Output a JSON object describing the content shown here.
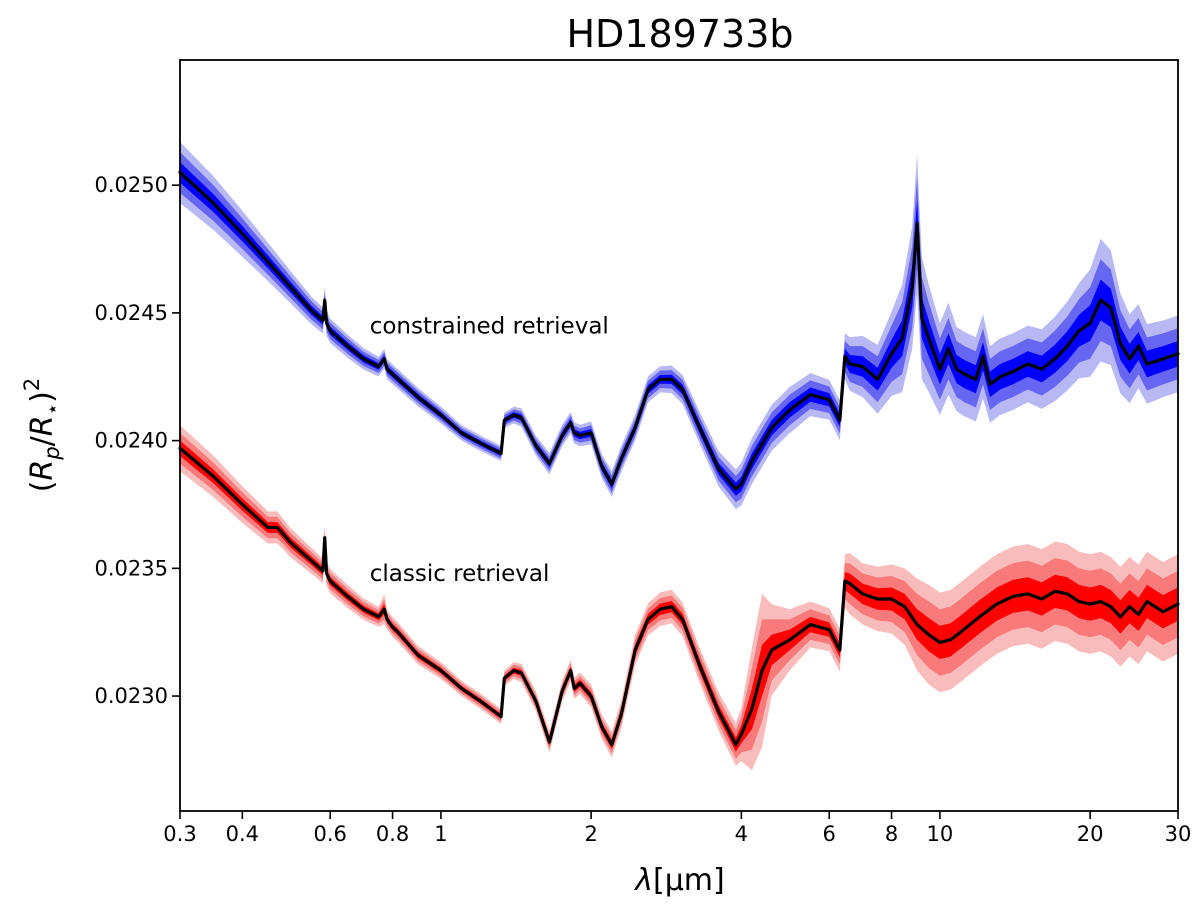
{
  "chart_data": {
    "type": "line",
    "title": "HD189733b",
    "xlabel_symbol": "λ",
    "xlabel_unit": "[μm]",
    "ylabel": "(Rp/R⋆)²",
    "xscale": "log",
    "xlim": [
      0.3,
      30
    ],
    "ylim": [
      0.02255,
      0.02549
    ],
    "x_ticks": [
      0.3,
      0.4,
      0.6,
      0.8,
      1,
      2,
      4,
      6,
      8,
      10,
      20,
      30
    ],
    "x_tick_labels": [
      "0.3",
      "0.4",
      "0.6",
      "0.8",
      "1",
      "2",
      "4",
      "6",
      "8",
      "10",
      "20",
      "30"
    ],
    "y_ticks": [
      0.023,
      0.0235,
      0.024,
      0.0245,
      0.025
    ],
    "y_tick_labels": [
      "0.0230",
      "0.0235",
      "0.0240",
      "0.0245",
      "0.0250"
    ],
    "grid": false,
    "legend": "none",
    "annotations": [
      {
        "text": "constrained retrieval",
        "x": 0.72,
        "y": 0.02442
      },
      {
        "text": "classic retrieval",
        "x": 0.72,
        "y": 0.02345
      }
    ],
    "series": [
      {
        "color_median": "#000000",
        "color_1sigma": "#0000ff",
        "color_2sigma": "#6666f2",
        "color_3sigma": "#b8b8f5",
        "x": [
          0.3,
          0.35,
          0.4,
          0.45,
          0.5,
          0.55,
          0.58,
          0.585,
          0.59,
          0.6,
          0.65,
          0.7,
          0.75,
          0.77,
          0.78,
          0.8,
          0.9,
          1.0,
          1.1,
          1.2,
          1.32,
          1.34,
          1.4,
          1.45,
          1.55,
          1.65,
          1.75,
          1.82,
          1.85,
          1.9,
          2.0,
          2.1,
          2.2,
          2.3,
          2.45,
          2.6,
          2.75,
          2.9,
          3.05,
          3.3,
          3.6,
          3.9,
          4.0,
          4.2,
          4.6,
          5.0,
          5.5,
          6.0,
          6.3,
          6.45,
          6.6,
          7.0,
          7.5,
          8.0,
          8.4,
          8.8,
          9.0,
          9.2,
          9.5,
          10.0,
          10.4,
          10.8,
          11.2,
          11.8,
          12.2,
          12.6,
          13.2,
          14.0,
          15.0,
          16.0,
          17.0,
          18.0,
          19.0,
          20.0,
          21.0,
          22.0,
          23.0,
          24.0,
          25.0,
          26.0,
          28.0,
          30.0
        ],
        "y": [
          0.02505,
          0.02493,
          0.02481,
          0.0247,
          0.0246,
          0.02451,
          0.02447,
          0.02455,
          0.02446,
          0.02443,
          0.02437,
          0.02432,
          0.02429,
          0.02432,
          0.02428,
          0.02426,
          0.02417,
          0.0241,
          0.02403,
          0.02399,
          0.02395,
          0.02408,
          0.0241,
          0.02409,
          0.02398,
          0.02391,
          0.02402,
          0.02407,
          0.02403,
          0.02402,
          0.02403,
          0.0239,
          0.02383,
          0.02393,
          0.02405,
          0.0242,
          0.02424,
          0.02424,
          0.0242,
          0.02405,
          0.02389,
          0.02381,
          0.02383,
          0.02392,
          0.02405,
          0.02412,
          0.02418,
          0.02416,
          0.02408,
          0.02433,
          0.0243,
          0.02429,
          0.02424,
          0.02434,
          0.0244,
          0.0246,
          0.02485,
          0.02448,
          0.0244,
          0.02428,
          0.02436,
          0.02428,
          0.02426,
          0.02424,
          0.02433,
          0.02422,
          0.02425,
          0.02427,
          0.0243,
          0.02428,
          0.02432,
          0.02437,
          0.02443,
          0.02446,
          0.02455,
          0.02452,
          0.02438,
          0.02432,
          0.02437,
          0.0243,
          0.02432,
          0.02434
        ],
        "sigma1": [
          4e-05,
          3.5e-05,
          3e-05,
          2.5e-05,
          2.1e-05,
          1.8e-05,
          1.7e-05,
          1.7e-05,
          1.7e-05,
          1.6e-05,
          1.5e-05,
          1.4e-05,
          1.3e-05,
          1.3e-05,
          1.3e-05,
          1.3e-05,
          1.2e-05,
          1.1e-05,
          1e-05,
          1e-05,
          1e-05,
          1e-05,
          1.1e-05,
          1.2e-05,
          1.3e-05,
          1.4e-05,
          1.4e-05,
          1.4e-05,
          1.4e-05,
          1.4e-05,
          1.5e-05,
          1.6e-05,
          1.7e-05,
          1.7e-05,
          1.7e-05,
          1.7e-05,
          1.7e-05,
          1.8e-05,
          1.9e-05,
          2.1e-05,
          2.3e-05,
          2.6e-05,
          2.8e-05,
          3e-05,
          3e-05,
          3e-05,
          2.8e-05,
          2.6e-05,
          2.6e-05,
          3e-05,
          3.5e-05,
          4e-05,
          4.5e-05,
          5.5e-05,
          7e-05,
          8e-05,
          9e-05,
          8e-05,
          7e-05,
          6e-05,
          6e-05,
          5.5e-05,
          5.5e-05,
          5.5e-05,
          5.5e-05,
          5e-05,
          5e-05,
          5e-05,
          5e-05,
          5.2e-05,
          5.5e-05,
          5.8e-05,
          6.2e-05,
          7e-05,
          8e-05,
          7.5e-05,
          6.5e-05,
          5.8e-05,
          5.5e-05,
          5.2e-05,
          5e-05,
          5e-05
        ]
      },
      {
        "color_median": "#000000",
        "color_1sigma": "#ff0000",
        "color_2sigma": "#f97a7a",
        "color_3sigma": "#f9bcbc",
        "x": [
          0.3,
          0.35,
          0.4,
          0.45,
          0.47,
          0.48,
          0.5,
          0.55,
          0.58,
          0.585,
          0.59,
          0.6,
          0.65,
          0.7,
          0.75,
          0.77,
          0.78,
          0.8,
          0.82,
          0.9,
          1.0,
          1.1,
          1.2,
          1.32,
          1.34,
          1.4,
          1.45,
          1.55,
          1.65,
          1.75,
          1.82,
          1.85,
          1.9,
          2.0,
          2.1,
          2.2,
          2.3,
          2.45,
          2.6,
          2.75,
          2.9,
          3.05,
          3.3,
          3.6,
          3.9,
          4.0,
          4.2,
          4.4,
          4.6,
          5.0,
          5.5,
          6.0,
          6.3,
          6.45,
          6.6,
          7.0,
          7.5,
          8.0,
          8.5,
          9.0,
          9.5,
          10.0,
          10.5,
          11.0,
          12.0,
          13.0,
          14.0,
          15.0,
          16.0,
          17.0,
          18.0,
          19.0,
          20.0,
          21.0,
          22.0,
          23.0,
          24.0,
          25.0,
          26.0,
          28.0,
          30.0
        ],
        "y": [
          0.02397,
          0.02386,
          0.02375,
          0.02366,
          0.02366,
          0.02364,
          0.0236,
          0.02353,
          0.02349,
          0.02362,
          0.02348,
          0.02345,
          0.02339,
          0.02334,
          0.02331,
          0.02334,
          0.0233,
          0.02327,
          0.02325,
          0.02316,
          0.0231,
          0.02303,
          0.02298,
          0.02292,
          0.02307,
          0.0231,
          0.02309,
          0.02298,
          0.02282,
          0.02302,
          0.0231,
          0.02303,
          0.02305,
          0.023,
          0.02288,
          0.02281,
          0.02293,
          0.02318,
          0.0233,
          0.02334,
          0.02335,
          0.0233,
          0.02312,
          0.02294,
          0.02281,
          0.02285,
          0.02295,
          0.0231,
          0.02318,
          0.02322,
          0.02328,
          0.02326,
          0.02318,
          0.02345,
          0.02344,
          0.0234,
          0.02338,
          0.02338,
          0.02335,
          0.02328,
          0.02324,
          0.02321,
          0.02322,
          0.02325,
          0.02331,
          0.02336,
          0.02339,
          0.0234,
          0.02338,
          0.02341,
          0.0234,
          0.02337,
          0.02336,
          0.02337,
          0.02335,
          0.02331,
          0.02335,
          0.02332,
          0.02337,
          0.02333,
          0.02336
        ],
        "sigma1": [
          3e-05,
          2.7e-05,
          2.4e-05,
          2.1e-05,
          2.1e-05,
          2e-05,
          1.9e-05,
          1.7e-05,
          1.6e-05,
          1.6e-05,
          1.6e-05,
          1.6e-05,
          1.5e-05,
          1.4e-05,
          1.3e-05,
          2e-05,
          1.3e-05,
          1.3e-05,
          1.3e-05,
          1.2e-05,
          1.1e-05,
          1e-05,
          1e-05,
          1e-05,
          1e-05,
          1.1e-05,
          1.2e-05,
          1.3e-05,
          1.4e-05,
          1.4e-05,
          1.4e-05,
          1.4e-05,
          1.4e-05,
          1.5e-05,
          1.6e-05,
          1.7e-05,
          1.8e-05,
          2e-05,
          2.1e-05,
          2.2e-05,
          2.2e-05,
          2.2e-05,
          2.3e-05,
          2.5e-05,
          2.8e-05,
          3.5e-05,
          8e-05,
          0.0001,
          6e-05,
          4e-05,
          3e-05,
          2.8e-05,
          2.8e-05,
          3.5e-05,
          4e-05,
          4e-05,
          4.2e-05,
          4.5e-05,
          5e-05,
          6e-05,
          6.5e-05,
          6.5e-05,
          6.5e-05,
          6.5e-05,
          6.5e-05,
          6.5e-05,
          6.5e-05,
          6.5e-05,
          6.5e-05,
          6.5e-05,
          6.5e-05,
          6.5e-05,
          6.5e-05,
          6.5e-05,
          6.5e-05,
          6.5e-05,
          6.5e-05,
          6.5e-05,
          6.5e-05,
          6.5e-05,
          6.5e-05
        ]
      }
    ]
  }
}
